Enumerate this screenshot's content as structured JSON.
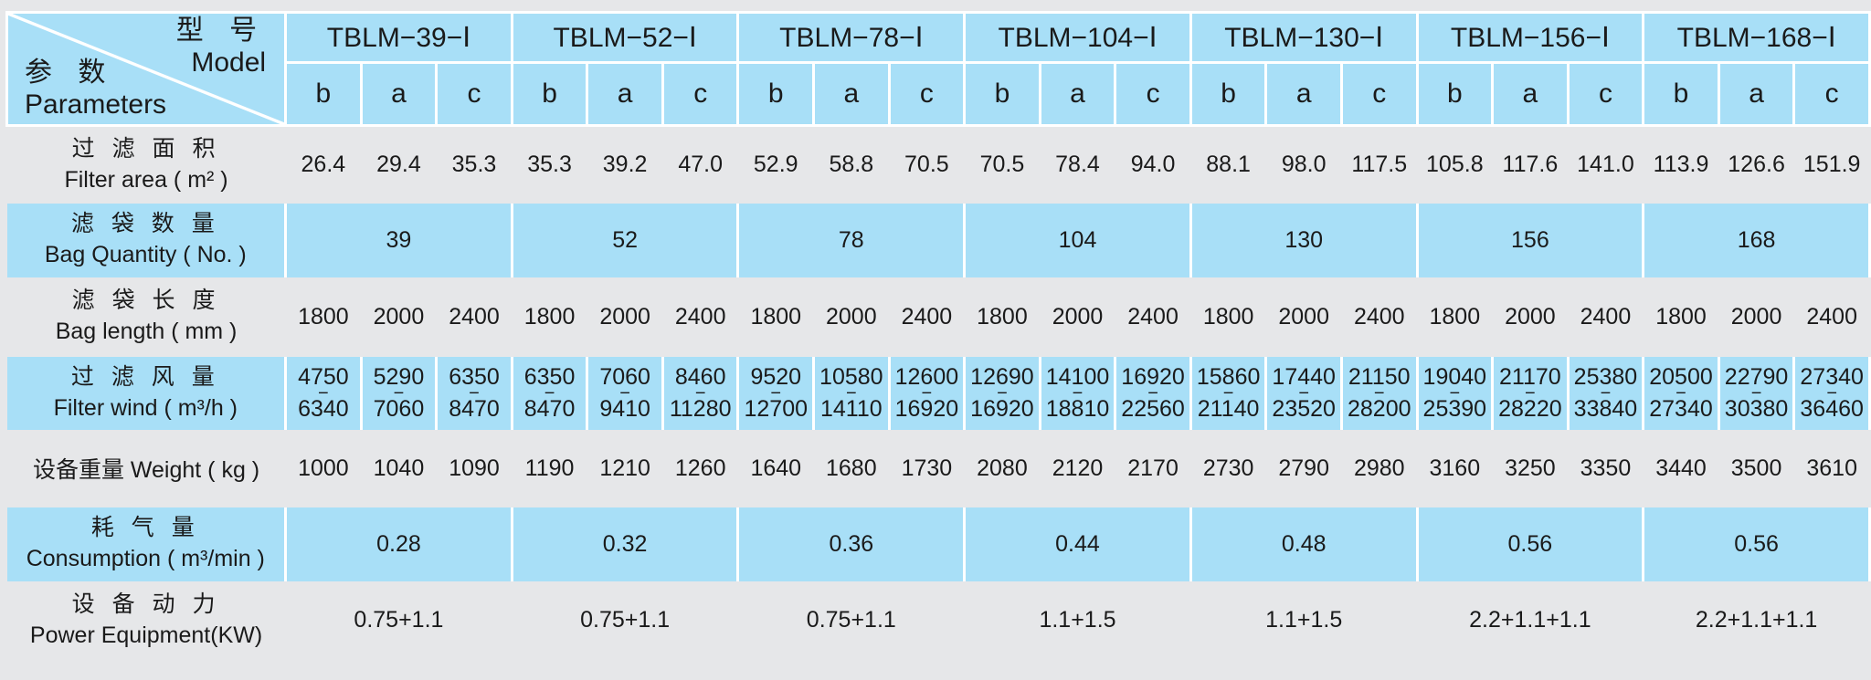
{
  "corner": {
    "model_zh": "型 号",
    "model_en": "Model",
    "param_zh": "参 数",
    "param_en": "Parameters"
  },
  "models": [
    "TBLM−39−Ⅰ",
    "TBLM−52−Ⅰ",
    "TBLM−78−Ⅰ",
    "TBLM−104−Ⅰ",
    "TBLM−130−Ⅰ",
    "TBLM−156−Ⅰ",
    "TBLM−168−Ⅰ"
  ],
  "sub_columns": [
    "b",
    "a",
    "c"
  ],
  "rows": {
    "filter_area": {
      "label_zh": "过 滤 面 积",
      "label_en": "Filter area ( m² )",
      "values": [
        "26.4",
        "29.4",
        "35.3",
        "35.3",
        "39.2",
        "47.0",
        "52.9",
        "58.8",
        "70.5",
        "70.5",
        "78.4",
        "94.0",
        "88.1",
        "98.0",
        "117.5",
        "105.8",
        "117.6",
        "141.0",
        "113.9",
        "126.6",
        "151.9"
      ]
    },
    "bag_quantity": {
      "label_zh": "滤 袋 数 量",
      "label_en": "Bag Quantity ( No. )",
      "values": [
        "39",
        "52",
        "78",
        "104",
        "130",
        "156",
        "168"
      ]
    },
    "bag_length": {
      "label_zh": "滤 袋 长 度",
      "label_en": "Bag length ( mm )",
      "values": [
        "1800",
        "2000",
        "2400",
        "1800",
        "2000",
        "2400",
        "1800",
        "2000",
        "2400",
        "1800",
        "2000",
        "2400",
        "1800",
        "2000",
        "2400",
        "1800",
        "2000",
        "2400",
        "1800",
        "2000",
        "2400"
      ]
    },
    "filter_wind": {
      "label_zh": "过 滤 风 量",
      "label_en": "Filter wind ( m³/h )",
      "dash": "−",
      "min": [
        "4750",
        "5290",
        "6350",
        "6350",
        "7060",
        "8460",
        "9520",
        "10580",
        "12600",
        "12690",
        "14100",
        "16920",
        "15860",
        "17440",
        "21150",
        "19040",
        "21170",
        "25380",
        "20500",
        "22790",
        "27340"
      ],
      "max": [
        "6340",
        "7060",
        "8470",
        "8470",
        "9410",
        "11280",
        "12700",
        "14110",
        "16920",
        "16920",
        "18810",
        "22560",
        "21140",
        "23520",
        "28200",
        "25390",
        "28220",
        "33840",
        "27340",
        "30380",
        "36460"
      ]
    },
    "weight": {
      "label": "设备重量 Weight ( kg )",
      "values": [
        "1000",
        "1040",
        "1090",
        "1190",
        "1210",
        "1260",
        "1640",
        "1680",
        "1730",
        "2080",
        "2120",
        "2170",
        "2730",
        "2790",
        "2980",
        "3160",
        "3250",
        "3350",
        "3440",
        "3500",
        "3610"
      ]
    },
    "consumption": {
      "label_zh": "耗 气 量",
      "label_en": "Consumption ( m³/min )",
      "values": [
        "0.28",
        "0.32",
        "0.36",
        "0.44",
        "0.48",
        "0.56",
        "0.56"
      ]
    },
    "power": {
      "label_zh": "设 备 动 力",
      "label_en": "Power Equipment(KW)",
      "values": [
        "0.75+1.1",
        "0.75+1.1",
        "0.75+1.1",
        "1.1+1.5",
        "1.1+1.5",
        "2.2+1.1+1.1",
        "2.2+1.1+1.1"
      ]
    }
  },
  "colors": {
    "header_blue": "#a8dff7",
    "background_grey": "#e6e7e9",
    "grid_white": "#ffffff"
  }
}
